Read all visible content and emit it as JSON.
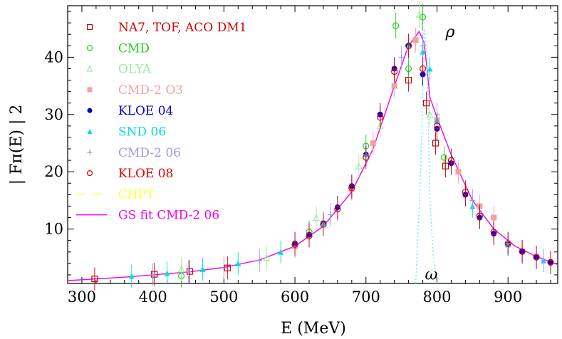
{
  "chart_data": {
    "type": "scatter",
    "title": "",
    "xlabel": "E (MeV)",
    "ylabel": "| Fπ(E) | 2",
    "xlim": [
      280,
      970
    ],
    "ylim": [
      0.5,
      49
    ],
    "xticks": [
      300,
      400,
      500,
      600,
      700,
      800,
      900
    ],
    "yticks": [
      10,
      20,
      30,
      40
    ],
    "grid": false,
    "legend_position": "top-left",
    "annotations": [
      {
        "text": "ρ",
        "x": 808,
        "y": 44.5
      },
      {
        "text": "ω",
        "x": 789,
        "y": 2.2
      }
    ],
    "series": [
      {
        "name": "NA7, TOF, ACO DM1",
        "marker": "open-square",
        "color": "#cc0000",
        "x": [
          318,
          402,
          452,
          505,
          760,
          785,
          798,
          812
        ],
        "y": [
          1.3,
          2.1,
          2.6,
          3.2,
          36.0,
          32.0,
          25.0,
          21.0
        ]
      },
      {
        "name": "CMD",
        "marker": "open-circle",
        "color": "#22cc22",
        "x": [
          440,
          620,
          700,
          742,
          760,
          780,
          810
        ],
        "y": [
          1.8,
          9.5,
          24.5,
          45.5,
          38.0,
          47.0,
          22.5
        ]
      },
      {
        "name": "OLYA",
        "marker": "open-triangle",
        "color": "#99ee99",
        "x": [
          440,
          560,
          630,
          690,
          720,
          775,
          790
        ],
        "y": [
          3.0,
          5.0,
          12.0,
          21.0,
          28.0,
          47.5,
          30.0
        ]
      },
      {
        "name": "CMD-2 O3",
        "marker": "filled-square",
        "color": "#f2a0a0",
        "x": [
          600,
          640,
          680,
          710,
          740,
          770,
          800,
          830,
          860,
          880
        ],
        "y": [
          7.0,
          11.0,
          17.0,
          25.0,
          35.0,
          43.0,
          29.0,
          20.0,
          14.0,
          12.0
        ]
      },
      {
        "name": "KLOE 04",
        "marker": "filled-circle",
        "color": "#0000cc",
        "x": [
          600,
          620,
          640,
          660,
          680,
          700,
          720,
          740,
          760,
          780,
          800,
          820,
          840,
          860,
          880,
          900,
          920,
          940,
          960
        ],
        "y": [
          7.5,
          9.0,
          11.0,
          13.8,
          17.5,
          23.0,
          30.0,
          38.0,
          42.0,
          37.0,
          27.5,
          21.5,
          16.0,
          12.0,
          9.2,
          7.3,
          6.0,
          5.0,
          4.1
        ]
      },
      {
        "name": "SND 06",
        "marker": "filled-triangle",
        "color": "#00dddd",
        "x": [
          370,
          420,
          470,
          520,
          580,
          640,
          700,
          760,
          780,
          790,
          800,
          850,
          900,
          950
        ],
        "y": [
          1.8,
          2.3,
          3.0,
          4.0,
          6.0,
          11.0,
          23.0,
          42.0,
          41.0,
          38.0,
          29.0,
          14.0,
          7.3,
          4.5
        ]
      },
      {
        "name": "CMD-2 06",
        "marker": "plus",
        "color": "#9999ee",
        "x": [
          400,
          450,
          500,
          550,
          600,
          650,
          700,
          750,
          780,
          800,
          850,
          900,
          950
        ],
        "y": [
          2.0,
          2.5,
          3.2,
          4.5,
          7.0,
          12.5,
          23.0,
          40.0,
          42.0,
          30.0,
          15.0,
          7.5,
          4.5
        ]
      },
      {
        "name": "KLOE 08",
        "marker": "open-circle",
        "color": "#dd0000",
        "x": [
          600,
          620,
          640,
          660,
          680,
          700,
          720,
          740,
          760,
          780,
          800,
          820,
          840,
          860,
          880,
          900,
          920,
          940,
          960
        ],
        "y": [
          7.3,
          8.8,
          10.8,
          13.5,
          17.2,
          22.5,
          29.5,
          37.5,
          42.0,
          38.0,
          28.0,
          22.0,
          16.5,
          12.3,
          9.5,
          7.5,
          6.1,
          5.1,
          4.2
        ]
      }
    ],
    "lines": [
      {
        "name": "CHPT",
        "style": "dashed",
        "color": "#ffff33",
        "x": [
          280,
          300,
          330,
          360,
          400,
          440
        ],
        "y": [
          1.0,
          1.15,
          1.35,
          1.6,
          2.0,
          2.5
        ]
      },
      {
        "name": "GS fit CMD-2 06",
        "style": "solid",
        "color": "#ee00ee",
        "x": [
          280,
          320,
          360,
          400,
          450,
          500,
          550,
          600,
          640,
          680,
          710,
          740,
          760,
          775,
          782,
          786,
          790,
          800,
          820,
          850,
          880,
          910,
          940,
          970
        ],
        "y": [
          1.0,
          1.3,
          1.6,
          2.0,
          2.5,
          3.3,
          4.6,
          7.0,
          10.5,
          16.5,
          24.0,
          35.0,
          42.0,
          44.5,
          42.5,
          38.0,
          33.0,
          29.5,
          23.0,
          15.0,
          10.0,
          7.0,
          5.2,
          3.8
        ]
      },
      {
        "name": "omega-interference",
        "style": "dotted",
        "color": "#66eeee",
        "x": [
          770,
          777,
          782,
          786,
          790,
          795,
          800
        ],
        "y": [
          0.5,
          20.0,
          45.0,
          40.0,
          15.0,
          5.0,
          0.5
        ]
      }
    ]
  }
}
